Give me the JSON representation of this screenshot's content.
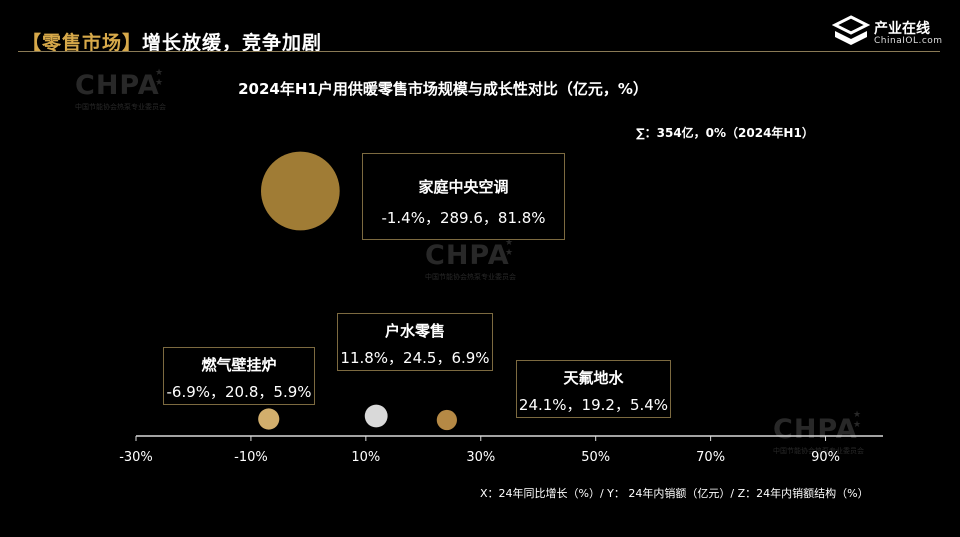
{
  "header": {
    "bracket_title": "【零售市场】",
    "subtitle": "增长放缓，竞争加剧"
  },
  "logo": {
    "brand": "产业在线",
    "site": "ChinaIOL.com",
    "icon": "chinaiol-logo-icon"
  },
  "watermark": {
    "text": "CHPA",
    "sub": "中国节能协会热泵专业委员会"
  },
  "chart_data": {
    "type": "bubble",
    "title": "2024年H1户用供暖零售市场规模与成长性对比（亿元，%）",
    "total_note": "∑：354亿，0%（2024年H1）",
    "xlabel_note": "X：24年同比增长（%）/ Y： 24年内销额（亿元）/ Z：24年内销额结构（%）",
    "x_ticks": [
      "-30%",
      "-10%",
      "10%",
      "30%",
      "50%",
      "70%",
      "90%"
    ],
    "x_range": [
      -30,
      100
    ],
    "series": [
      {
        "name": "家庭中央空调",
        "x": -1.4,
        "y": 289.6,
        "z": 81.8,
        "label": "-1.4%，289.6，81.8%",
        "color": "#a07c35"
      },
      {
        "name": "户水零售",
        "x": 11.8,
        "y": 24.5,
        "z": 6.9,
        "label": "11.8%，24.5，6.9%",
        "color": "#d9d9d9"
      },
      {
        "name": "燃气壁挂炉",
        "x": -6.9,
        "y": 20.8,
        "z": 5.9,
        "label": "-6.9%，20.8，5.9%",
        "color": "#d2ae6c"
      },
      {
        "name": "天氟地水",
        "x": 24.1,
        "y": 19.2,
        "z": 5.4,
        "label": "24.1%，19.2，5.4%",
        "color": "#b58945"
      }
    ]
  }
}
